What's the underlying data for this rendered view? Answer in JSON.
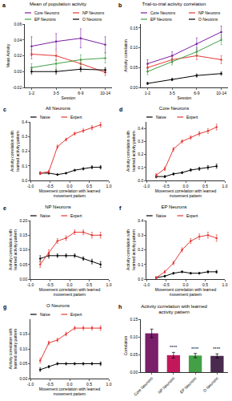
{
  "chart_data": [
    {
      "type": "line",
      "label": "a",
      "title": "Mean of population activity",
      "x_label": "Session",
      "y_label": "Mean Activity",
      "categories": [
        "1-2",
        "3-5",
        "6-9",
        "10-14"
      ],
      "series": [
        {
          "name": "Core Neurons",
          "color": "#7b1fa2",
          "values": [
            0.032,
            0.038,
            0.042,
            0.034
          ],
          "errors": [
            0.012,
            0.01,
            0.012,
            0.01
          ]
        },
        {
          "name": "NP Neurons",
          "color": "#e53935",
          "values": [
            0.022,
            0.02,
            0.01,
            -0.001
          ],
          "errors": [
            0.006,
            0.006,
            0.005,
            0.004
          ]
        },
        {
          "name": "EP Neurons",
          "color": "#43a047",
          "values": [
            0.005,
            0.01,
            0.015,
            0.017
          ],
          "errors": [
            0.005,
            0.005,
            0.006,
            0.006
          ]
        },
        {
          "name": "O Neurons",
          "color": "#000000",
          "values": [
            0.0,
            0.0,
            0.003,
            0.002
          ],
          "errors": [
            0.003,
            0.003,
            0.003,
            0.003
          ]
        }
      ],
      "ylim": [
        -0.02,
        0.06
      ],
      "yticks": [
        -0.02,
        {
          "value": 0,
          "label": "0.00"
        },
        0.02,
        0.04,
        0.06
      ],
      "grid": false,
      "legend": "top"
    },
    {
      "type": "line",
      "label": "b",
      "title": "Trial-to-trial activity correlation",
      "x_label": "Session",
      "y_label": "Activity correlation",
      "categories": [
        "1-2",
        "3-5",
        "6-9",
        "10-14"
      ],
      "series": [
        {
          "name": "Core Neurons",
          "color": "#7b1fa2",
          "values": [
            0.06,
            0.08,
            0.11,
            0.14
          ],
          "errors": [
            0.01,
            0.01,
            0.015,
            0.015
          ]
        },
        {
          "name": "NP Neurons",
          "color": "#e53935",
          "values": [
            0.05,
            0.07,
            0.08,
            0.07
          ],
          "errors": [
            0.008,
            0.008,
            0.01,
            0.01
          ]
        },
        {
          "name": "EP Neurons",
          "color": "#43a047",
          "values": [
            0.04,
            0.065,
            0.09,
            0.12
          ],
          "errors": [
            0.008,
            0.008,
            0.01,
            0.012
          ]
        },
        {
          "name": "O Neurons",
          "color": "#000000",
          "values": [
            0.01,
            0.02,
            0.03,
            0.035
          ],
          "errors": [
            0.003,
            0.003,
            0.004,
            0.004
          ]
        }
      ],
      "ylim": [
        0,
        0.16
      ],
      "yticks": [
        {
          "value": 0,
          "label": "0.00"
        },
        0.05,
        {
          "value": 0.1,
          "label": "0.10"
        },
        0.15
      ],
      "grid": false,
      "legend": "top"
    },
    {
      "type": "line",
      "label": "c",
      "title": "All Neurons",
      "x_label": "Movement correlation with learned movement pattern",
      "y_label": "Activity correlation with learned activity pattern",
      "x": [
        -0.75,
        -0.53,
        -0.31,
        -0.09,
        0.13,
        0.35,
        0.57,
        0.79
      ],
      "series": [
        {
          "name": "Naive",
          "color": "#000000",
          "values": [
            0.05,
            0.05,
            0.04,
            0.05,
            0.07,
            0.08,
            0.09,
            0.09
          ],
          "errors": [
            0.008,
            0.006,
            0.005,
            0.005,
            0.006,
            0.008,
            0.01,
            0.012
          ]
        },
        {
          "name": "Expert",
          "color": "#e53935",
          "values": [
            0.05,
            0.06,
            0.23,
            0.28,
            0.32,
            0.34,
            0.36,
            0.38
          ],
          "errors": [
            0.01,
            0.01,
            0.012,
            0.01,
            0.01,
            0.012,
            0.014,
            0.016
          ]
        }
      ],
      "xlim": [
        -1,
        1
      ],
      "xticks": [
        {
          "value": -1,
          "label": "-1.0"
        },
        -0.5,
        {
          "value": 0,
          "label": "0.0"
        },
        0.5,
        {
          "value": 1,
          "label": "1.0"
        }
      ],
      "ylim": [
        0,
        0.4
      ],
      "yticks": [
        {
          "value": 0,
          "label": "0.0"
        },
        0.1,
        0.2,
        0.3,
        0.4
      ],
      "grid": false,
      "legend": "top"
    },
    {
      "type": "line",
      "label": "d",
      "title": "Core Neurons",
      "x_label": "Movement correlation with learned movement pattern",
      "y_label": "Activity correlation with learned activity pattern",
      "x": [
        -0.75,
        -0.53,
        -0.31,
        -0.09,
        0.13,
        0.35,
        0.57,
        0.79
      ],
      "series": [
        {
          "name": "Naive",
          "color": "#000000",
          "values": [
            0.03,
            0.03,
            0.05,
            0.06,
            0.08,
            0.09,
            0.1,
            0.11
          ],
          "errors": [
            0.01,
            0.008,
            0.008,
            0.008,
            0.01,
            0.012,
            0.014,
            0.016
          ]
        },
        {
          "name": "Expert",
          "color": "#e53935",
          "values": [
            0.04,
            0.09,
            0.24,
            0.3,
            0.33,
            0.36,
            0.38,
            0.41
          ],
          "errors": [
            0.012,
            0.014,
            0.014,
            0.012,
            0.014,
            0.016,
            0.018,
            0.022
          ]
        }
      ],
      "xlim": [
        -1,
        1
      ],
      "xticks": [
        {
          "value": -1,
          "label": "-1.0"
        },
        -0.5,
        {
          "value": 0,
          "label": "0.0"
        },
        0.5,
        {
          "value": 1,
          "label": "1.0"
        }
      ],
      "ylim": [
        0,
        0.45
      ],
      "yticks": [
        {
          "value": 0,
          "label": "0.0"
        },
        0.1,
        0.2,
        0.3,
        0.4
      ],
      "grid": false,
      "legend": "top"
    },
    {
      "type": "line",
      "label": "e",
      "title": "NP Neurons",
      "x_label": "Movement correlation with learned movement pattern",
      "y_label": "Activity correlation with learned activity pattern",
      "x": [
        -0.75,
        -0.53,
        -0.31,
        -0.09,
        0.13,
        0.35,
        0.57,
        0.79
      ],
      "series": [
        {
          "name": "Naive",
          "color": "#000000",
          "values": [
            0.07,
            0.08,
            0.08,
            0.08,
            0.08,
            0.07,
            0.06,
            0.05
          ],
          "errors": [
            0.01,
            0.008,
            0.006,
            0.006,
            0.006,
            0.006,
            0.008,
            0.01
          ]
        },
        {
          "name": "Expert",
          "color": "#e53935",
          "values": [
            0.05,
            0.09,
            0.13,
            0.14,
            0.16,
            0.16,
            0.15,
            0.15
          ],
          "errors": [
            0.01,
            0.01,
            0.008,
            0.008,
            0.008,
            0.008,
            0.01,
            0.01
          ]
        }
      ],
      "xlim": [
        -1,
        1
      ],
      "xticks": [
        {
          "value": -1,
          "label": "-1.0"
        },
        -0.5,
        {
          "value": 0,
          "label": "0.0"
        },
        0.5,
        {
          "value": 1,
          "label": "1.0"
        }
      ],
      "ylim": [
        0,
        0.2
      ],
      "yticks": [
        {
          "value": 0,
          "label": "0.00"
        },
        0.05,
        {
          "value": 0.1,
          "label": "0.10"
        },
        0.15,
        {
          "value": 0.2,
          "label": "0.20"
        }
      ],
      "grid": false,
      "legend": "top"
    },
    {
      "type": "line",
      "label": "f",
      "title": "EP Neurons",
      "x_label": "Movement correlation with learned movement pattern",
      "y_label": "Activity correlation with learned activity pattern",
      "x": [
        -0.75,
        -0.53,
        -0.31,
        -0.09,
        0.13,
        0.35,
        0.57,
        0.79
      ],
      "series": [
        {
          "name": "Naive",
          "color": "#000000",
          "values": [
            0.01,
            0.02,
            0.04,
            0.05,
            0.04,
            0.04,
            0.05,
            0.05
          ],
          "errors": [
            0.006,
            0.006,
            0.006,
            0.006,
            0.006,
            0.006,
            0.008,
            0.01
          ]
        },
        {
          "name": "Expert",
          "color": "#e53935",
          "values": [
            0.01,
            0.05,
            0.11,
            0.2,
            0.26,
            0.29,
            0.3,
            0.28
          ],
          "errors": [
            0.006,
            0.01,
            0.012,
            0.014,
            0.016,
            0.018,
            0.02,
            0.022
          ]
        }
      ],
      "xlim": [
        -1,
        1
      ],
      "xticks": [
        {
          "value": -1,
          "label": "-1.0"
        },
        -0.5,
        {
          "value": 0,
          "label": "0.0"
        },
        0.5,
        {
          "value": 1,
          "label": "1.0"
        }
      ],
      "ylim": [
        0,
        0.4
      ],
      "yticks": [
        {
          "value": 0,
          "label": "0.0"
        },
        0.1,
        0.2,
        0.3,
        0.4
      ],
      "grid": false,
      "legend": "top"
    },
    {
      "type": "line",
      "label": "g",
      "title": "O Neurons",
      "x_label": "Movement correlation with learned movement pattern",
      "y_label": "Activity correlation with learned activity pattern",
      "x": [
        -0.75,
        -0.53,
        -0.31,
        -0.09,
        0.13,
        0.35,
        0.57,
        0.79
      ],
      "series": [
        {
          "name": "Naive",
          "color": "#000000",
          "values": [
            0.03,
            0.04,
            0.05,
            0.05,
            0.05,
            0.05,
            0.05,
            0.05
          ],
          "errors": [
            0.006,
            0.004,
            0.004,
            0.004,
            0.004,
            0.004,
            0.004,
            0.006
          ]
        },
        {
          "name": "Expert",
          "color": "#e53935",
          "values": [
            0.06,
            0.12,
            0.13,
            0.15,
            0.17,
            0.17,
            0.17,
            0.17
          ],
          "errors": [
            0.008,
            0.006,
            0.006,
            0.006,
            0.006,
            0.006,
            0.006,
            0.008
          ]
        }
      ],
      "xlim": [
        -1,
        1
      ],
      "xticks": [
        {
          "value": -1,
          "label": "-1.0"
        },
        -0.5,
        {
          "value": 0,
          "label": "0.0"
        },
        0.5,
        {
          "value": 1,
          "label": "1.0"
        }
      ],
      "ylim": [
        0,
        0.2
      ],
      "yticks": [
        {
          "value": 0,
          "label": "0.00"
        },
        0.05,
        {
          "value": 0.1,
          "label": "0.10"
        },
        0.15
      ],
      "grid": false,
      "legend": "top"
    },
    {
      "type": "bar",
      "label": "h",
      "title": "Activity correlation with learned activity pattern",
      "y_label": "Correlation",
      "categories": [
        "Core Neurons",
        "NP Neurons",
        "EP Neurons",
        "O Neurons"
      ],
      "values": [
        0.11,
        0.048,
        0.047,
        0.046
      ],
      "errors": [
        0.012,
        0.008,
        0.006,
        0.006
      ],
      "colors": [
        "#7a1f6a",
        "#c2185b",
        "#43a047",
        "#4a2a4f"
      ],
      "annotations": [
        {
          "category": "NP Neurons",
          "text": "****"
        },
        {
          "category": "EP Neurons",
          "text": "****"
        },
        {
          "category": "O Neurons",
          "text": "****"
        }
      ],
      "ylim": [
        0,
        0.15
      ],
      "yticks": [
        {
          "value": 0,
          "label": "0.00"
        },
        0.05,
        {
          "value": 0.1,
          "label": "0.10"
        },
        0.15
      ],
      "grid": false
    }
  ]
}
